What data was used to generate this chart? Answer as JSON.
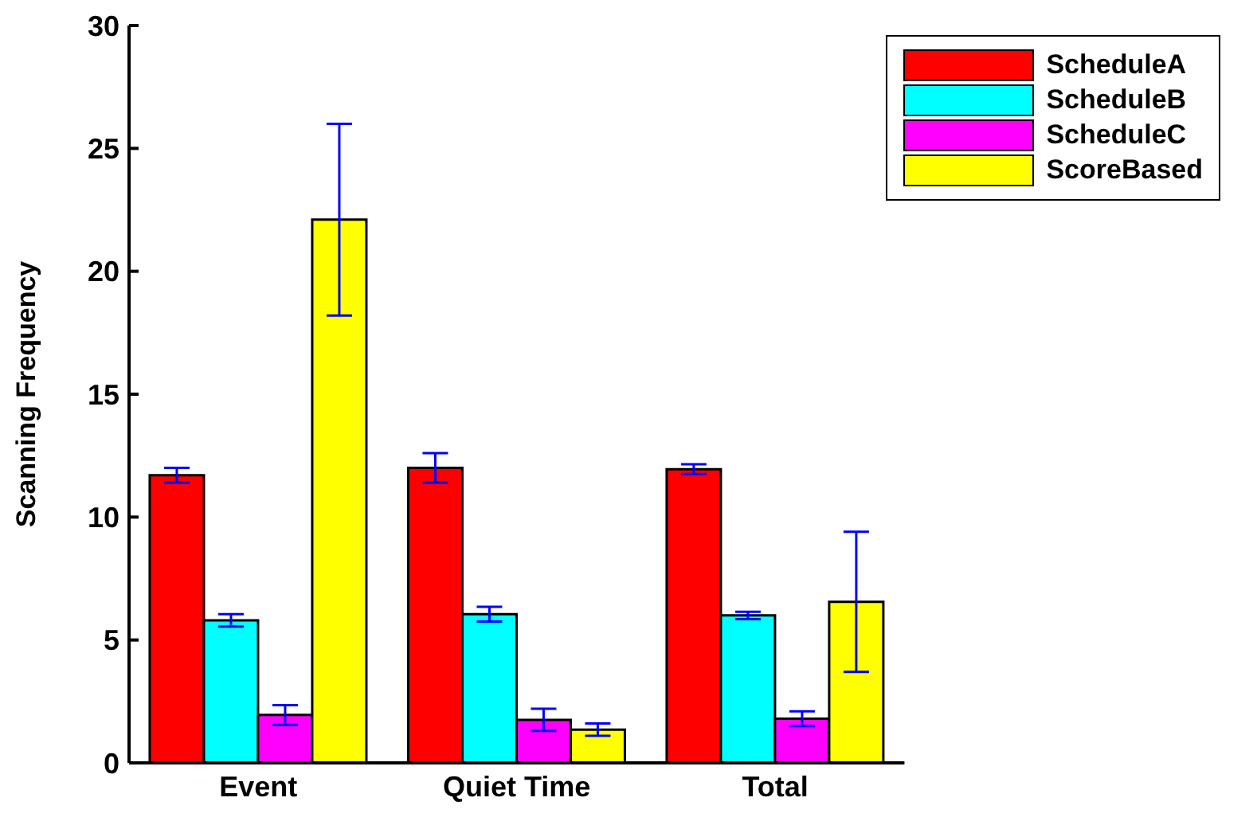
{
  "chart_data": {
    "type": "bar",
    "ylabel": "Scanning Frequency",
    "categories": [
      "Event",
      "Quiet Time",
      "Total"
    ],
    "series": [
      {
        "name": "ScheduleA",
        "color": "#ff0000",
        "values": [
          11.7,
          12.0,
          11.95
        ],
        "errors": [
          [
            11.4,
            12.0
          ],
          [
            11.4,
            12.6
          ],
          [
            11.75,
            12.15
          ]
        ]
      },
      {
        "name": "ScheduleB",
        "color": "#00ffff",
        "values": [
          5.8,
          6.05,
          6.0
        ],
        "errors": [
          [
            5.55,
            6.05
          ],
          [
            5.75,
            6.35
          ],
          [
            5.85,
            6.15
          ]
        ]
      },
      {
        "name": "ScheduleC",
        "color": "#ff00ff",
        "values": [
          1.95,
          1.75,
          1.8
        ],
        "errors": [
          [
            1.55,
            2.35
          ],
          [
            1.3,
            2.2
          ],
          [
            1.5,
            2.1
          ]
        ]
      },
      {
        "name": "ScoreBased",
        "color": "#ffff00",
        "values": [
          22.1,
          1.35,
          6.55
        ],
        "errors": [
          [
            18.2,
            26.0
          ],
          [
            1.1,
            1.6
          ],
          [
            3.7,
            9.4
          ]
        ]
      }
    ],
    "ylim": [
      0,
      30
    ],
    "yticks": [
      0,
      5,
      10,
      15,
      20,
      25,
      30
    ],
    "grid": false,
    "legend": "top right"
  }
}
